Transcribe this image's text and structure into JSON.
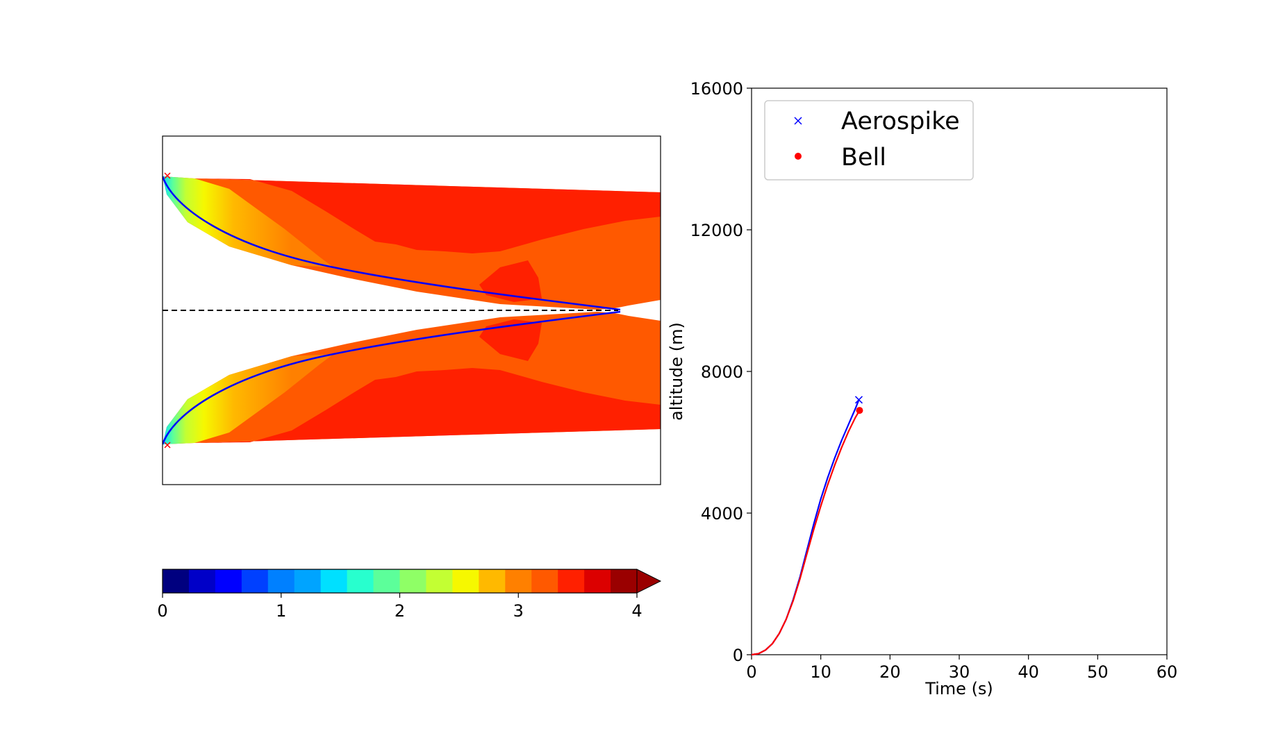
{
  "colors": {
    "jet": [
      "#00007f",
      "#0000c8",
      "#0000ff",
      "#0040ff",
      "#0080ff",
      "#00a4ff",
      "#00e0ff",
      "#28ffce",
      "#5cff9a",
      "#8fff66",
      "#c3ff33",
      "#f6f800",
      "#ffb900",
      "#ff8000",
      "#ff5900",
      "#ff2000",
      "#dc0000",
      "#9a0000"
    ],
    "aerospike": "#0000ff",
    "bell": "#ff0000",
    "centerline": "#000000"
  },
  "chart_data": [
    {
      "type": "contour",
      "title": "",
      "xlabel": "",
      "ylabel": "",
      "markers": [
        "x",
        "x"
      ]
    },
    {
      "type": "colorbar",
      "ticks": [
        "0",
        "1",
        "2",
        "3",
        "4"
      ],
      "vmin": 0,
      "vmax": 4,
      "levels": 18,
      "extend": "max"
    },
    {
      "type": "line",
      "title": "",
      "xlabel": "Time (s)",
      "ylabel": "altitude (m)",
      "xlim": [
        0,
        60
      ],
      "ylim": [
        0,
        16000
      ],
      "xticks": [
        "0",
        "10",
        "20",
        "30",
        "40",
        "50",
        "60"
      ],
      "yticks": [
        "0",
        "4000",
        "8000",
        "12000",
        "16000"
      ],
      "legend": "upper-left",
      "series": [
        {
          "name": "Aerospike",
          "marker": "x",
          "color": "#0000ff",
          "x": [
            0,
            1,
            2,
            3,
            4,
            5,
            6,
            7,
            8,
            9,
            10,
            11,
            12,
            13,
            14,
            15,
            15.5
          ],
          "y": [
            0,
            30,
            130,
            310,
            600,
            1000,
            1550,
            2200,
            2950,
            3700,
            4400,
            5000,
            5550,
            6050,
            6500,
            6950,
            7200
          ]
        },
        {
          "name": "Bell",
          "marker": "o",
          "color": "#ff0000",
          "x": [
            0,
            1,
            2,
            3,
            4,
            5,
            6,
            7,
            8,
            9,
            10,
            11,
            12,
            13,
            14,
            15,
            15.6
          ],
          "y": [
            0,
            30,
            130,
            310,
            600,
            1000,
            1520,
            2150,
            2850,
            3550,
            4200,
            4800,
            5350,
            5850,
            6300,
            6700,
            6900
          ]
        }
      ]
    }
  ]
}
